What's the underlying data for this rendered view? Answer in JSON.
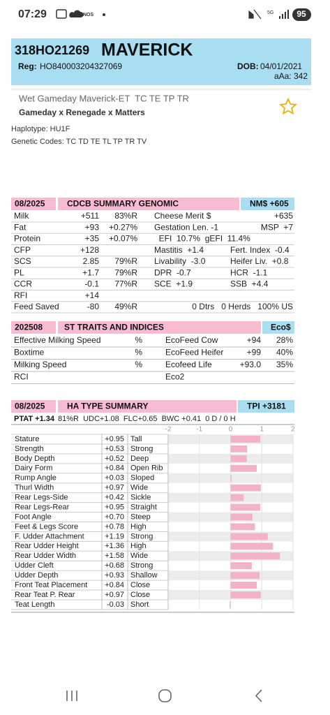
{
  "status": {
    "time": "07:29",
    "carrier": "NOS",
    "network": "5G",
    "battery": "95"
  },
  "header": {
    "id": "318HO21269",
    "name": "MAVERICK",
    "reg_label": "Reg:",
    "reg": "HO840003204327069",
    "dob_label": "DOB:",
    "dob": "04/01/2021",
    "aaa": "aAa: 342"
  },
  "info": {
    "full_name": "Wet Gameday Maverick-ET  TC TE TP TR",
    "pedigree": "Gameday x Renegade x Matters",
    "haplotype": "Haplotype: HU1F",
    "genetic_codes": "Genetic Codes: TC TD TE TL TP TR TV"
  },
  "cdcb": {
    "date": "08/2025",
    "title": "CDCB SUMMARY GENOMIC",
    "index": "NM$ +605",
    "rows": [
      {
        "label": "Milk",
        "value": "+511",
        "rel": "83%R",
        "trait2": "Cheese Merit $",
        "note": "+635"
      },
      {
        "label": "Fat",
        "value": "+93",
        "rel": "+0.27%",
        "trait2": "Gestation Len. -1",
        "note": "MSP  +7"
      },
      {
        "label": "Protein",
        "value": "+35",
        "rel": "+0.07%",
        "trait2": "  EFI  10.7%  gEFI  11.4%"
      },
      {
        "label": "CFP",
        "value": "+128",
        "trait2": "Mastitis  +1.4",
        "trait3": "Fert. Index  -0.4"
      },
      {
        "label": "SCS",
        "value": "2.85",
        "rel": "79%R",
        "trait2": "Livability  -3.0",
        "trait3": "Heifer Liv.  +0.8"
      },
      {
        "label": "PL",
        "value": "+1.7",
        "rel": "79%R",
        "trait2": "DPR  -0.7",
        "trait3": "HCR  -1.1"
      },
      {
        "label": "CCR",
        "value": "-0.1",
        "rel": "77%R",
        "trait2": "SCE  +1.9",
        "trait3": "SSB  +4.4"
      },
      {
        "label": "RFI",
        "value": "+14"
      },
      {
        "label": "Feed Saved",
        "value": "-80",
        "rel": "49%R",
        "note": "0 Dtrs   0 Herds   100% US"
      }
    ]
  },
  "st": {
    "date": "202508",
    "title": "ST TRAITS AND INDICES",
    "index": "Eco$",
    "rows": [
      {
        "label": "Effective Milking Speed",
        "unit": "%",
        "trait2": "EcoFeed Cow",
        "value": "+94",
        "rel": "28%"
      },
      {
        "label": "Boxtime",
        "unit": "%",
        "trait2": "EcoFeed Heifer",
        "value": "+99",
        "rel": "40%"
      },
      {
        "label": "Milking Speed",
        "unit": "%",
        "trait2": "Ecofeed Life",
        "value": "+93.0",
        "rel": "35%"
      },
      {
        "label": "RCI",
        "trait2": "Eco2"
      }
    ]
  },
  "ha": {
    "date": "08/2025",
    "title": "HA TYPE SUMMARY",
    "index": "TPI +3181",
    "ptat": "PTAT +1.34",
    "ptat_details": "81%R  UDC+1.08  FLC+0.65  BWC +0.41  0 D / 0 H",
    "xlim": [
      -2,
      2
    ],
    "xticks": [
      -2,
      -1,
      0,
      1,
      2
    ],
    "bar_color": "#f2b3c9",
    "traits": [
      "Stature",
      "Strength",
      "Body Depth",
      "Dairy Form",
      "Rump Angle",
      "Thurl Width",
      "Rear Legs-Side",
      "Rear Legs-Rear",
      "Foot Angle",
      "Feet & Legs Score",
      "F. Udder Attachment",
      "Rear Udder Height",
      "Rear Udder Width",
      "Udder Cleft",
      "Udder Depth",
      "Front Teat Placement",
      "Rear Teat P. Rear",
      "Teat Length"
    ],
    "values": [
      0.95,
      0.53,
      0.52,
      0.84,
      0.03,
      0.97,
      0.42,
      0.95,
      0.7,
      0.78,
      1.19,
      1.36,
      1.58,
      0.68,
      0.93,
      0.84,
      0.97,
      -0.03
    ],
    "value_labels": [
      "+0.95",
      "+0.53",
      "+0.52",
      "+0.84",
      "+0.03",
      "+0.97",
      "+0.42",
      "+0.95",
      "+0.70",
      "+0.78",
      "+1.19",
      "+1.36",
      "+1.58",
      "+0.68",
      "+0.93",
      "+0.84",
      "+0.97",
      "-0.03"
    ],
    "descriptors": [
      "Tall",
      "Strong",
      "Deep",
      "Open Rib",
      "Sloped",
      "Wide",
      "Sickle",
      "Straight",
      "Steep",
      "High",
      "Strong",
      "High",
      "Wide",
      "Strong",
      "Shallow",
      "Close",
      "Close",
      "Short"
    ]
  }
}
